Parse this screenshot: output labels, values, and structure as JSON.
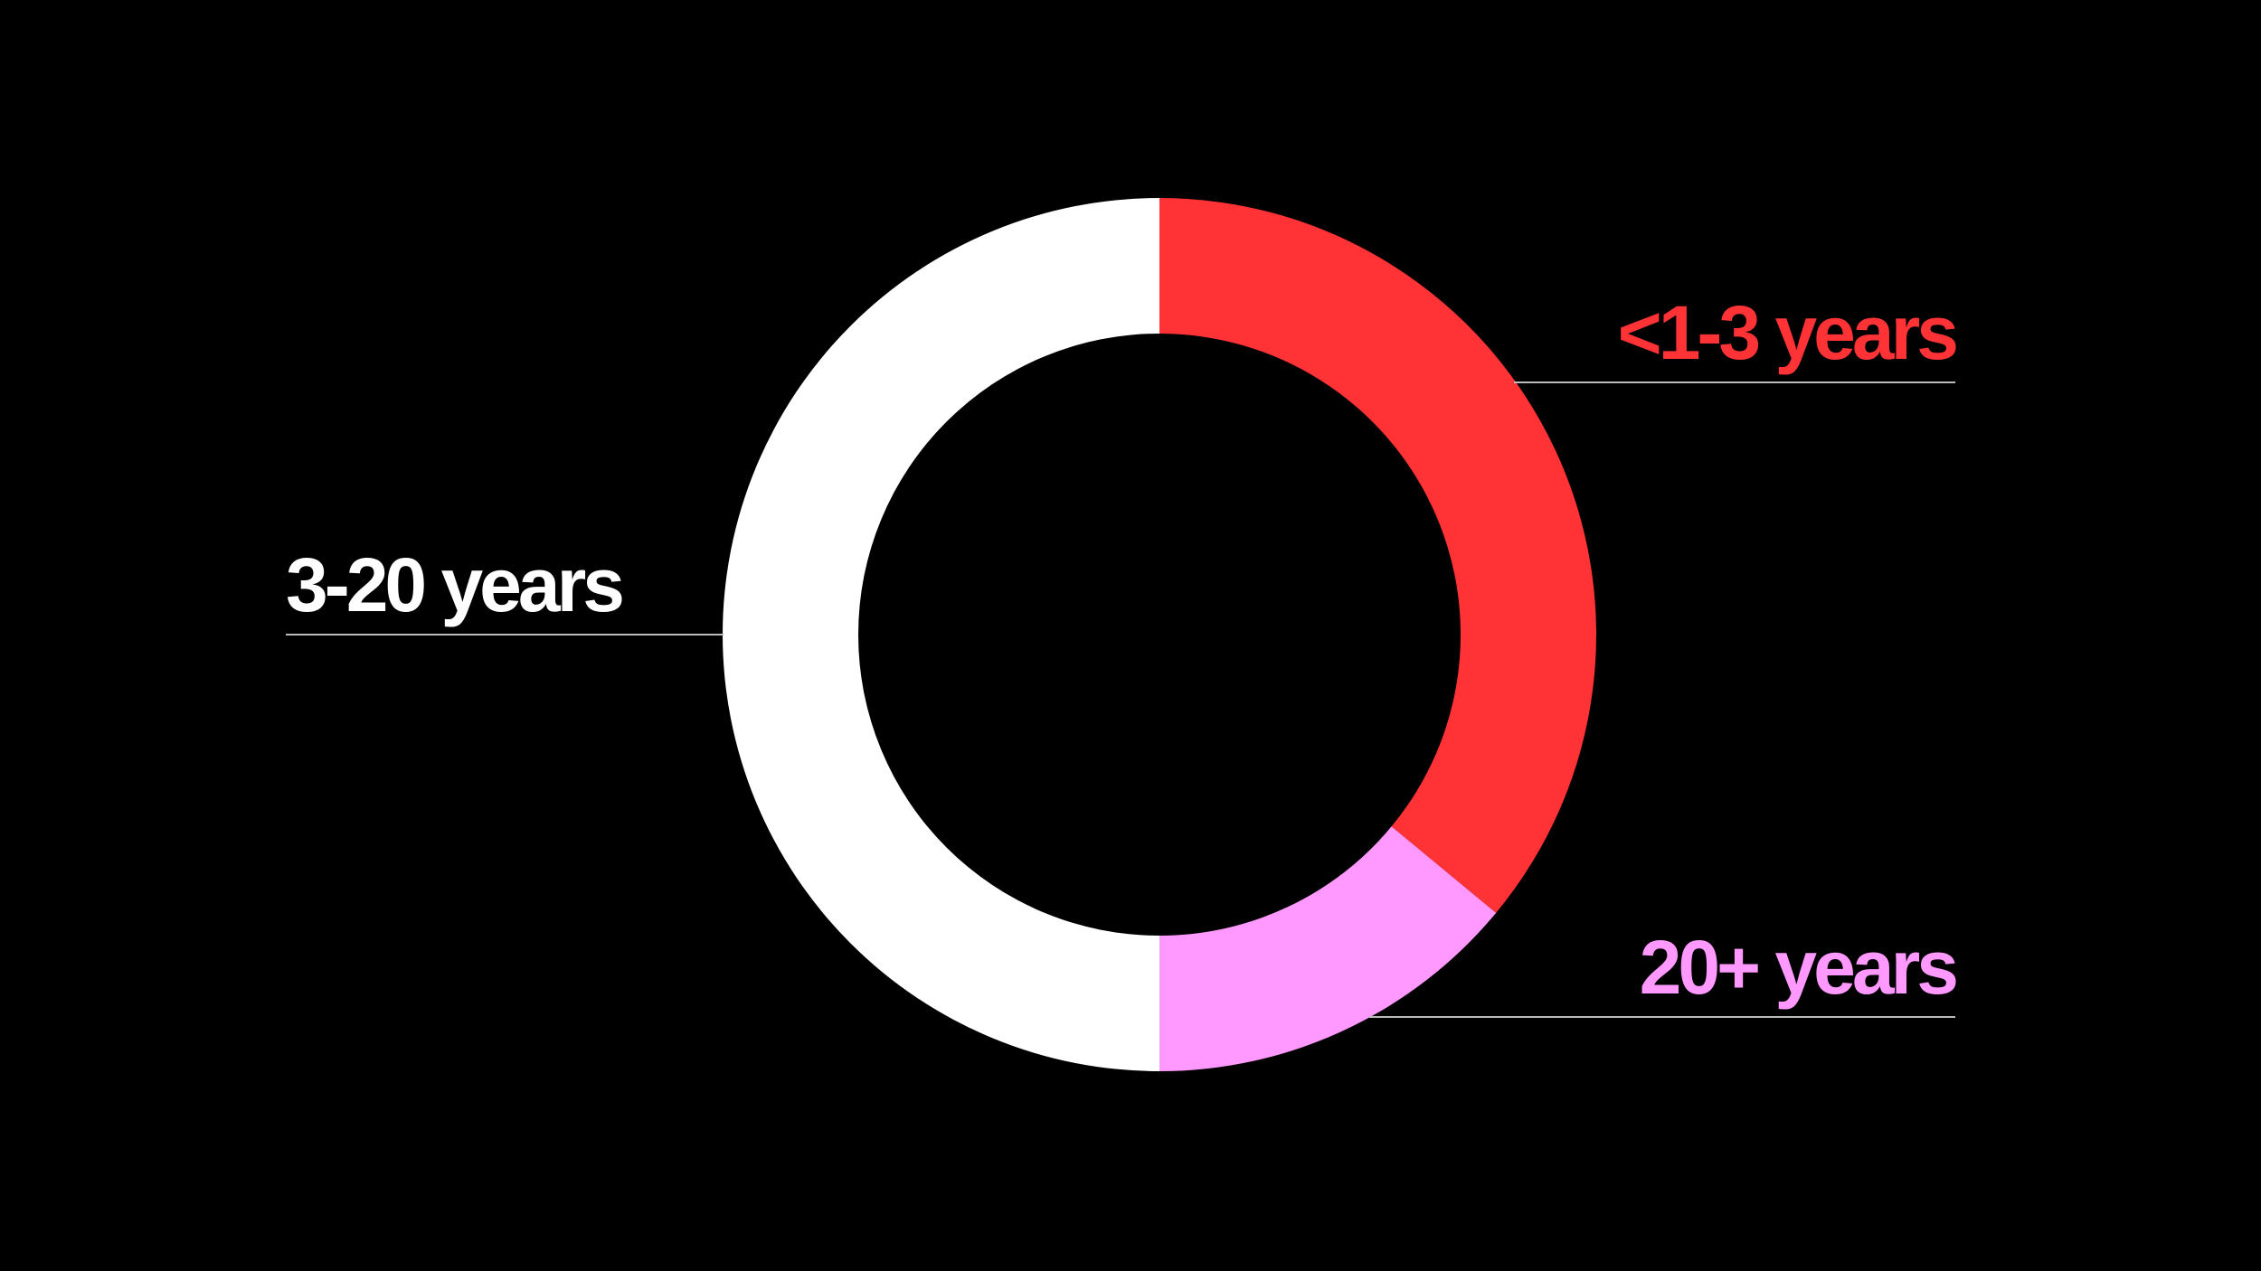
{
  "chart_data": {
    "type": "pie",
    "variant": "donut",
    "title": "",
    "categories": [
      "<1-3 years",
      "20+ years",
      "3-20 years"
    ],
    "values": [
      36,
      14,
      50
    ],
    "unit": "percent (estimated, not printed)",
    "colors": [
      "#ff3236",
      "#ff99ff",
      "#ffffff"
    ],
    "start": "top, clockwise",
    "legend": "none; labels with leader lines"
  },
  "background": "#000000"
}
